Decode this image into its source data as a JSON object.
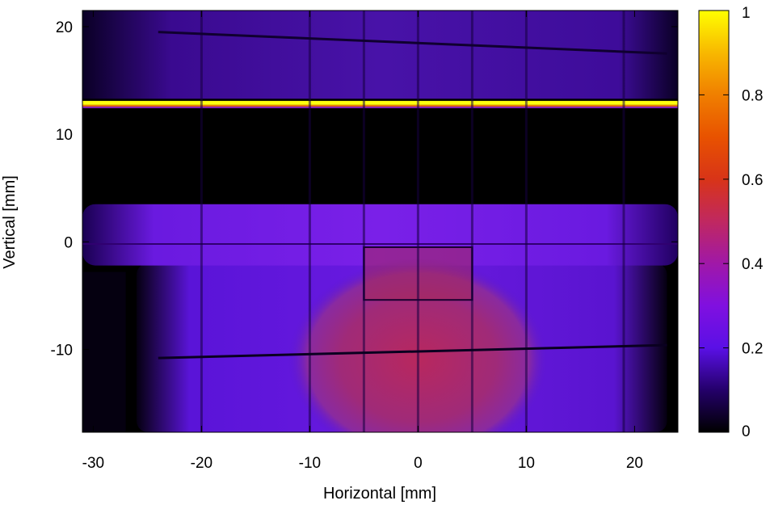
{
  "chart_data": {
    "type": "heatmap",
    "xlabel": "Horizontal [mm]",
    "ylabel": "Vertical [mm]",
    "xlim": [
      -31,
      24
    ],
    "ylim": [
      -17.7,
      21.5
    ],
    "x_ticks": [
      -30,
      -20,
      -10,
      0,
      10,
      20
    ],
    "y_ticks": [
      -10,
      0,
      10,
      20
    ],
    "colorbar": {
      "range": [
        0,
        1
      ],
      "ticks": [
        0,
        0.2,
        0.4,
        0.6,
        0.8,
        1
      ],
      "tick_labels": [
        "0",
        "0.2",
        "0.4",
        "0.6",
        "0.8",
        "1"
      ],
      "colormap": "gnuplot-pm3d (black-blue-purple-red-orange-yellow)"
    },
    "grid": false,
    "features": [
      {
        "name": "bright line",
        "y": 12.8,
        "value": 1.0
      },
      {
        "name": "upper band",
        "y_range": [
          13.5,
          21.5
        ],
        "value": 0.22
      },
      {
        "name": "dark gap",
        "y_range": [
          4,
          12.5
        ],
        "value": 0.0
      },
      {
        "name": "horizontal band",
        "y_range": [
          -2,
          3.5
        ],
        "value": 0.28
      },
      {
        "name": "central beam spot",
        "x_center": 0,
        "y_center": -11,
        "value": 0.45
      },
      {
        "name": "small square",
        "x_range": [
          -5,
          5
        ],
        "y_range": [
          -5.5,
          -0.5
        ],
        "value": 0.45
      }
    ]
  }
}
